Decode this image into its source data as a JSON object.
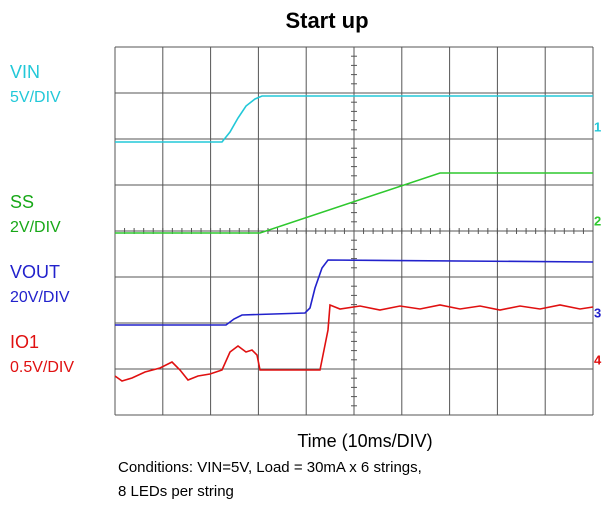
{
  "title": "Start up",
  "channels": [
    {
      "name": "VIN",
      "scale": "5V/DIV",
      "marker": "1"
    },
    {
      "name": "SS",
      "scale": "2V/DIV",
      "marker": "2"
    },
    {
      "name": "VOUT",
      "scale": "20V/DIV",
      "marker": "3"
    },
    {
      "name": "IO1",
      "scale": "0.5V/DIV",
      "marker": "4"
    }
  ],
  "x_label": "Time (10ms/DIV)",
  "conditions": [
    "Conditions: VIN=5V, Load = 30mA x 6 strings,",
    "8 LEDs per string"
  ]
}
